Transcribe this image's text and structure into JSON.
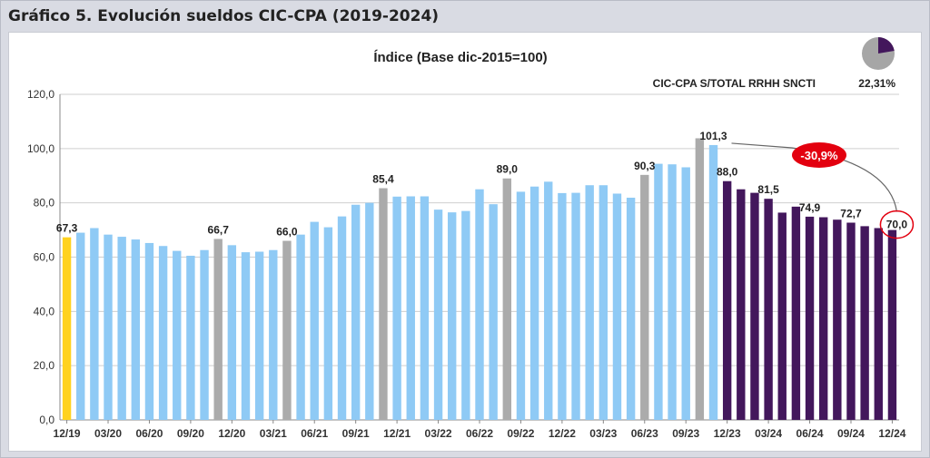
{
  "header": {
    "title": "Gráfico 5. Evolución sueldos CIC-CPA (2019-2024)"
  },
  "colors": {
    "yellow": "#ffd21f",
    "light_blue": "#8fcaf5",
    "gray": "#ababab",
    "purple": "#43175c",
    "red": "#e3000f",
    "grid": "#cfcfcf",
    "pie_rest": "#a6a6a6"
  },
  "chart_data": {
    "type": "bar",
    "title": "Índice (Base dic-2015=100)",
    "ylim": [
      0,
      120
    ],
    "yticks": [
      "0,0",
      "20,0",
      "40,0",
      "60,0",
      "80,0",
      "100,0",
      "120,0"
    ],
    "xlabel": "",
    "ylabel": "",
    "values": [
      67.3,
      69.0,
      70.7,
      68.3,
      67.5,
      66.5,
      65.2,
      64.1,
      62.3,
      60.5,
      62.6,
      66.7,
      64.4,
      61.8,
      62.0,
      62.6,
      66.0,
      68.3,
      73.0,
      71.0,
      75.0,
      79.3,
      80.0,
      85.4,
      82.3,
      82.4,
      82.4,
      77.5,
      76.5,
      77.0,
      85.0,
      79.5,
      89.0,
      84.1,
      86.0,
      87.8,
      83.6,
      83.7,
      86.5,
      86.5,
      83.4,
      81.9,
      90.3,
      94.4,
      94.2,
      93.1,
      103.8,
      101.3,
      88.0,
      85.0,
      83.7,
      81.5,
      76.4,
      78.6,
      74.9,
      74.7,
      73.8,
      72.7,
      71.4,
      70.7,
      70.0
    ],
    "bar_types": [
      "yellow",
      "light_blue",
      "light_blue",
      "light_blue",
      "light_blue",
      "light_blue",
      "light_blue",
      "light_blue",
      "light_blue",
      "light_blue",
      "light_blue",
      "gray",
      "light_blue",
      "light_blue",
      "light_blue",
      "light_blue",
      "gray",
      "light_blue",
      "light_blue",
      "light_blue",
      "light_blue",
      "light_blue",
      "light_blue",
      "gray",
      "light_blue",
      "light_blue",
      "light_blue",
      "light_blue",
      "light_blue",
      "light_blue",
      "light_blue",
      "light_blue",
      "gray",
      "light_blue",
      "light_blue",
      "light_blue",
      "light_blue",
      "light_blue",
      "light_blue",
      "light_blue",
      "light_blue",
      "light_blue",
      "gray",
      "light_blue",
      "light_blue",
      "light_blue",
      "gray",
      "light_blue",
      "purple",
      "purple",
      "purple",
      "purple",
      "purple",
      "purple",
      "purple",
      "purple",
      "purple",
      "purple",
      "purple",
      "purple",
      "purple"
    ],
    "data_labels": [
      {
        "index": 0,
        "text": "67,3"
      },
      {
        "index": 11,
        "text": "66,7"
      },
      {
        "index": 16,
        "text": "66,0"
      },
      {
        "index": 23,
        "text": "85,4"
      },
      {
        "index": 32,
        "text": "89,0"
      },
      {
        "index": 42,
        "text": "90,3"
      },
      {
        "index": 47,
        "text": "101,3"
      },
      {
        "index": 48,
        "text": "88,0"
      },
      {
        "index": 51,
        "text": "81,5"
      },
      {
        "index": 54,
        "text": "74,9"
      },
      {
        "index": 57,
        "text": "72,7"
      },
      {
        "index": 60,
        "text": "70,0"
      }
    ],
    "x_tick_labels": [
      {
        "index": 0,
        "text": "12/19"
      },
      {
        "index": 3,
        "text": "03/20"
      },
      {
        "index": 6,
        "text": "06/20"
      },
      {
        "index": 9,
        "text": "09/20"
      },
      {
        "index": 12,
        "text": "12/20"
      },
      {
        "index": 15,
        "text": "03/21"
      },
      {
        "index": 18,
        "text": "06/21"
      },
      {
        "index": 21,
        "text": "09/21"
      },
      {
        "index": 24,
        "text": "12/21"
      },
      {
        "index": 27,
        "text": "03/22"
      },
      {
        "index": 30,
        "text": "06/22"
      },
      {
        "index": 33,
        "text": "09/22"
      },
      {
        "index": 36,
        "text": "12/22"
      },
      {
        "index": 39,
        "text": "03/23"
      },
      {
        "index": 42,
        "text": "06/23"
      },
      {
        "index": 45,
        "text": "09/23"
      },
      {
        "index": 48,
        "text": "12/23"
      },
      {
        "index": 51,
        "text": "03/24"
      },
      {
        "index": 54,
        "text": "06/24"
      },
      {
        "index": 57,
        "text": "09/24"
      },
      {
        "index": 60,
        "text": "12/24"
      }
    ],
    "annotation": {
      "text": "-30,9%",
      "from_index": 47,
      "to_index": 60
    },
    "inset_pie": {
      "label": "CIC-CPA S/TOTAL RRHH SNCTI",
      "value_text": "22,31%",
      "share": 0.2231
    }
  }
}
